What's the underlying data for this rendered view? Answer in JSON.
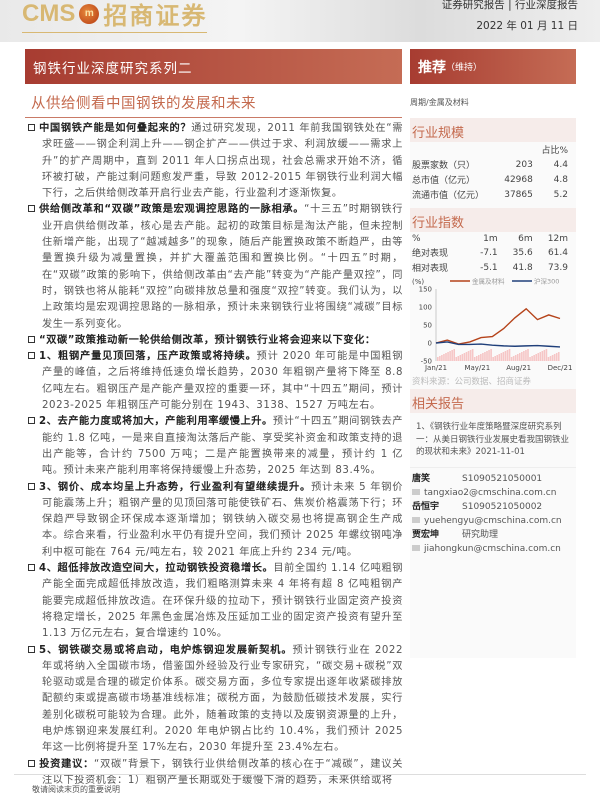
{
  "header": {
    "logo_latin": "CMS",
    "logo_mark": "m",
    "logo_cn": "招商证券",
    "report_type": "证券研究报告 | 行业深度报告",
    "date": "2022 年 01 月 11 日"
  },
  "series_title": "钢铁行业深度研究系列二",
  "title": "从供给侧看中国钢铁的发展和未来",
  "rating": {
    "label": "推荐",
    "note": "（维持）"
  },
  "category": "周期/金属及材料",
  "paragraphs": [
    {
      "bold": "中国钢铁产能是如何叠起来的？",
      "text": "通过研究发现，2011 年前我国钢铁处在“需求旺盛——钢企利润上升——钢企扩产——供过于求、利润放缓——需求上升”的扩产周期中，直到 2011 年人口拐点出现，社会总需求开始不济，循环被打破，产能过剩问题愈发严重，导致 2012-2015 年钢铁行业利润大幅下行，之后供给侧改革开启行业去产能，行业盈利才逐渐恢复。"
    },
    {
      "bold": "供给侧改革和“双碳”政策是宏观调控思路的一脉相承。",
      "text": "“十三五”时期钢铁行业开启供给侧改革，核心是去产能。起初的政策目标是淘汰产能，但未控制住新增产能，出现了“越减越多”的现象，随后产能置换政策不断趋严，由等量置换升级为减量置换，并扩大覆盖范围和置换比例。“十四五”时期，在“双碳”政策的影响下，供给侧改革由“去产能”转变为“产能产量双控”，同时，钢铁也将从能耗“双控”向碳排放总量和强度“双控”转变。我们认为，以上政策均是宏观调控思路的一脉相承，预计未来钢铁行业将围绕“减碳”目标发生一系列变化。"
    },
    {
      "bold": "“双碳”政策推动新一轮供给侧改革，预计钢铁行业将会迎来以下变化：",
      "text": ""
    },
    {
      "bold": "1、粗钢产量见顶回落，压产政策或将持续。",
      "text": "预计 2020 年可能是中国粗钢产量的峰值，之后将维持低速负增长趋势，2030 年粗钢产量将下降至 8.8 亿吨左右。粗钢压产是产能产量双控的重要一环，其中“十四五”期间，预计 2023-2025 年粗钢压产可能分别在 1943、3138、1527 万吨左右。"
    },
    {
      "bold": "2、去产能力度或将加大，产能利用率缓慢上升。",
      "text": "预计“十四五”期间钢铁去产能约 1.8 亿吨，一是来自直接淘汰落后产能、享受奖补资金和政策支持的退出产能等，合计约 7500 万吨；二是产能置换带来的减量，预计约 1 亿吨。预计未来产能利用率将保持缓慢上升态势，2025 年达到 83.4%。"
    },
    {
      "bold": "3、钢价、成本均呈上升态势，行业盈利有望继续提升。",
      "text": "预计未来 5 年钢价可能震荡上升；粗钢产量的见顶回落可能使铁矿石、焦炭价格震荡下行；环保趋严导致钢企环保成本逐渐增加；钢铁纳入碳交易也将提高钢企生产成本。综合来看，行业盈利水平仍有提升空间，我们预计 2025 年螺纹钢吨净利中枢可能在 764 元/吨左右，较 2021 年底上升约 234 元/吨。"
    },
    {
      "bold": "4、超低排放改造空间大，拉动钢铁投资稳增长。",
      "text": "目前全国约 1.14 亿吨粗钢产能全面完成超低排放改造，我们粗略测算未来 4 年将有超 8 亿吨粗钢产能要完成超低排放改造。在环保升级的拉动下，预计钢铁行业固定资产投资将稳定增长，2025 年黑色金属冶炼及压延加工业的固定资产投资有望升至 1.13 万亿元左右，复合增速约 10%。"
    },
    {
      "bold": "5、钢铁碳交易或将启动，电炉炼钢迎发展新契机。",
      "text": "预计钢铁行业在 2022 年或将纳入全国碳市场，借鉴国外经验及行业专家研究，“碳交易+碳税”双轮驱动或是合理的碳定价体系。碳交易方面，多位专家提出逐年收紧碳排放配额约束或提高碳市场基准线标准；碳税方面，为鼓励低碳技术发展，实行差别化碳税可能较为合理。此外，随着政策的支持以及废钢资源量的上升，电炉炼钢迎来发展红利。2020 年电炉钢占比约 10.4%，我们预计 2025 年这一比例将提升至 17%左右，2030 年提升至 23.4%左右。"
    },
    {
      "bold": "投资建议：",
      "text": "“双碳”背景下，钢铁行业供给侧改革的核心在于“减碳”，建议关注以下投资机会：1）粗钢产量长期或处于缓慢下滑的趋势，未来供给或将"
    }
  ],
  "industry_scale": {
    "heading": "行业规模",
    "col": "占比%",
    "rows": [
      [
        "股票家数（只）",
        "203",
        "4.4"
      ],
      [
        "总市值（亿元）",
        "42968",
        "4.8"
      ],
      [
        "流通市值（亿元）",
        "37865",
        "5.2"
      ]
    ]
  },
  "industry_index": {
    "heading": "行业指数",
    "cols": [
      "%",
      "1m",
      "6m",
      "12m"
    ],
    "rows": [
      [
        "绝对表现",
        "-7.1",
        "35.6",
        "61.4"
      ],
      [
        "相对表现",
        "-5.1",
        "41.8",
        "73.9"
      ]
    ]
  },
  "chart_data": {
    "type": "line",
    "ylabel": "(%)",
    "yticks": [
      150,
      100,
      50,
      0,
      -50
    ],
    "ylim": [
      -50,
      150
    ],
    "xticks": [
      "Jan/21",
      "May/21",
      "Aug/21",
      "Dec/21"
    ],
    "x": [
      "2021-01",
      "2021-02",
      "2021-03",
      "2021-04",
      "2021-05",
      "2021-06",
      "2021-07",
      "2021-08",
      "2021-09",
      "2021-10",
      "2021-11",
      "2021-12"
    ],
    "series": [
      {
        "name": "金属及材料",
        "color": "#b5431a",
        "values": [
          0,
          8,
          -3,
          3,
          15,
          18,
          40,
          70,
          95,
          65,
          78,
          68
        ]
      },
      {
        "name": "沪深300",
        "color": "#1f3f7a",
        "values": [
          0,
          3,
          -4,
          -4,
          -3,
          -6,
          -8,
          -9,
          -8,
          -7,
          -9,
          -11
        ]
      }
    ]
  },
  "source": "资料来源：公司数据、招商证券",
  "related": {
    "heading": "相关报告",
    "items": [
      "1、《钢铁行业年度策略暨深度研究系列一：从美日钢铁行业发展史看我国钢铁业的现状和未来》2021-11-01"
    ]
  },
  "authors": [
    {
      "name": "唐笑",
      "id": "S1090521050001",
      "email": "tangxiao2@cmschina.com.cn"
    },
    {
      "name": "岳恒宇",
      "id": "S1090521050002",
      "email": "yuehengyu@cmschina.com.cn"
    },
    {
      "name": "贾宏坤",
      "id": "研究助理",
      "email": "jiahongkun@cmschina.com.cn"
    }
  ],
  "footer": "敬请阅读末页的重要说明"
}
